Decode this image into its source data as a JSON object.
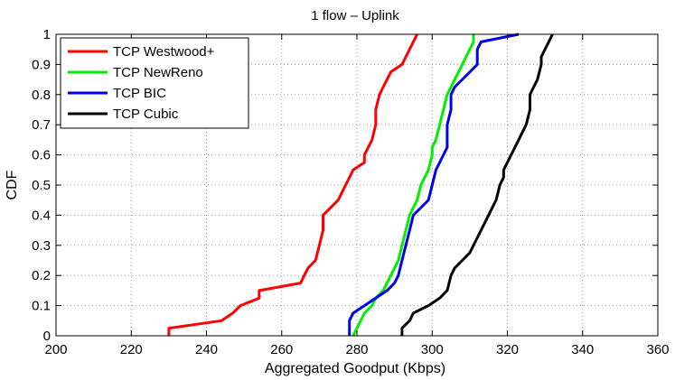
{
  "chart_data": {
    "type": "line",
    "title": "1 flow – Uplink",
    "xlabel": "Aggregated Goodput (Kbps)",
    "ylabel": "CDF",
    "xlim": [
      200,
      360
    ],
    "ylim": [
      0,
      1
    ],
    "xticks": [
      200,
      220,
      240,
      260,
      280,
      300,
      320,
      340,
      360
    ],
    "yticks": [
      0,
      0.1,
      0.2,
      0.3,
      0.4,
      0.5,
      0.6,
      0.7,
      0.8,
      0.9,
      1
    ],
    "grid": true,
    "legend_position": "top-left",
    "series": [
      {
        "name": "TCP Westwood+",
        "color": "#ff0000",
        "points": [
          [
            230,
            0
          ],
          [
            230,
            0.025
          ],
          [
            244,
            0.05
          ],
          [
            247,
            0.075
          ],
          [
            249,
            0.1
          ],
          [
            254,
            0.125
          ],
          [
            254,
            0.15
          ],
          [
            265,
            0.175
          ],
          [
            266,
            0.2
          ],
          [
            267,
            0.225
          ],
          [
            269,
            0.25
          ],
          [
            270,
            0.3
          ],
          [
            271,
            0.35
          ],
          [
            271,
            0.4
          ],
          [
            273,
            0.425
          ],
          [
            275,
            0.45
          ],
          [
            277,
            0.5
          ],
          [
            278,
            0.525
          ],
          [
            279,
            0.55
          ],
          [
            282,
            0.575
          ],
          [
            282,
            0.6
          ],
          [
            283,
            0.625
          ],
          [
            284,
            0.65
          ],
          [
            285,
            0.7
          ],
          [
            285,
            0.75
          ],
          [
            286,
            0.8
          ],
          [
            287,
            0.825
          ],
          [
            288,
            0.85
          ],
          [
            289,
            0.875
          ],
          [
            292,
            0.9
          ],
          [
            293,
            0.925
          ],
          [
            294,
            0.95
          ],
          [
            295,
            0.975
          ],
          [
            296,
            1
          ]
        ]
      },
      {
        "name": "TCP NewReno",
        "color": "#00ee00",
        "points": [
          [
            279,
            0
          ],
          [
            280,
            0.025
          ],
          [
            281,
            0.05
          ],
          [
            282,
            0.075
          ],
          [
            284,
            0.1
          ],
          [
            285,
            0.125
          ],
          [
            287,
            0.15
          ],
          [
            288,
            0.175
          ],
          [
            289,
            0.2
          ],
          [
            290,
            0.225
          ],
          [
            291,
            0.25
          ],
          [
            292,
            0.3
          ],
          [
            293,
            0.35
          ],
          [
            294,
            0.4
          ],
          [
            295,
            0.425
          ],
          [
            296,
            0.45
          ],
          [
            297,
            0.5
          ],
          [
            298,
            0.525
          ],
          [
            299,
            0.55
          ],
          [
            300,
            0.6
          ],
          [
            300,
            0.625
          ],
          [
            301,
            0.65
          ],
          [
            302,
            0.7
          ],
          [
            303,
            0.75
          ],
          [
            304,
            0.8
          ],
          [
            305,
            0.825
          ],
          [
            306,
            0.85
          ],
          [
            307,
            0.875
          ],
          [
            308,
            0.9
          ],
          [
            309,
            0.925
          ],
          [
            310,
            0.95
          ],
          [
            311,
            0.975
          ],
          [
            311,
            1
          ]
        ]
      },
      {
        "name": "TCP BIC",
        "color": "#0000ee",
        "points": [
          [
            278,
            0
          ],
          [
            278,
            0.05
          ],
          [
            279,
            0.075
          ],
          [
            282,
            0.1
          ],
          [
            285,
            0.125
          ],
          [
            288,
            0.15
          ],
          [
            290,
            0.175
          ],
          [
            291,
            0.2
          ],
          [
            292,
            0.25
          ],
          [
            293,
            0.3
          ],
          [
            294,
            0.35
          ],
          [
            295,
            0.4
          ],
          [
            297,
            0.425
          ],
          [
            299,
            0.45
          ],
          [
            300,
            0.5
          ],
          [
            301,
            0.55
          ],
          [
            302,
            0.575
          ],
          [
            303,
            0.6
          ],
          [
            304,
            0.625
          ],
          [
            304,
            0.7
          ],
          [
            305,
            0.75
          ],
          [
            305,
            0.8
          ],
          [
            306,
            0.825
          ],
          [
            308,
            0.85
          ],
          [
            310,
            0.875
          ],
          [
            312,
            0.9
          ],
          [
            312,
            0.95
          ],
          [
            313,
            0.975
          ],
          [
            323,
            1
          ]
        ]
      },
      {
        "name": "TCP Cubic",
        "color": "#000000",
        "points": [
          [
            292,
            0
          ],
          [
            292,
            0.025
          ],
          [
            294,
            0.05
          ],
          [
            295,
            0.075
          ],
          [
            299,
            0.1
          ],
          [
            302,
            0.125
          ],
          [
            304,
            0.15
          ],
          [
            305,
            0.2
          ],
          [
            306,
            0.225
          ],
          [
            308,
            0.25
          ],
          [
            310,
            0.275
          ],
          [
            311,
            0.3
          ],
          [
            312,
            0.325
          ],
          [
            313,
            0.35
          ],
          [
            314,
            0.375
          ],
          [
            315,
            0.4
          ],
          [
            316,
            0.425
          ],
          [
            317,
            0.45
          ],
          [
            318,
            0.5
          ],
          [
            319,
            0.525
          ],
          [
            319,
            0.55
          ],
          [
            320,
            0.575
          ],
          [
            321,
            0.6
          ],
          [
            322,
            0.625
          ],
          [
            323,
            0.65
          ],
          [
            324,
            0.675
          ],
          [
            325,
            0.7
          ],
          [
            326,
            0.75
          ],
          [
            326,
            0.8
          ],
          [
            327,
            0.825
          ],
          [
            328,
            0.85
          ],
          [
            329,
            0.9
          ],
          [
            329,
            0.925
          ],
          [
            330,
            0.95
          ],
          [
            331,
            0.975
          ],
          [
            332,
            1
          ]
        ]
      }
    ]
  }
}
